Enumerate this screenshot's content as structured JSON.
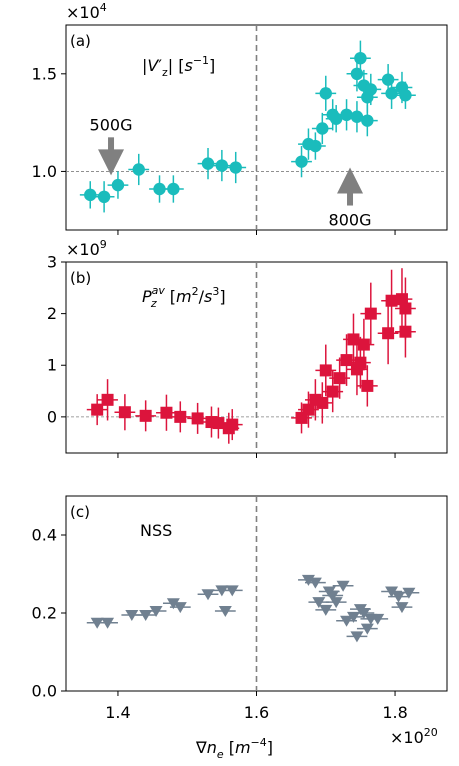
{
  "chart_data": {
    "type": "scatter",
    "xlabel": "∇n_e [m^-4]",
    "x_unit_label": "×10",
    "x_unit_exp": "20",
    "xlim": [
      1.325,
      1.875
    ],
    "xticks": [
      1.4,
      1.6,
      1.8
    ],
    "xtick_labels": [
      "1.4",
      "1.6",
      "1.8"
    ],
    "vline_x": 1.6,
    "panels": [
      {
        "label": "(a)",
        "title": "|V'_z| [s^-1]",
        "title_parts": [
          "|",
          "V",
          "′",
          "z",
          "| [",
          "s",
          "−1",
          "]"
        ],
        "multiplier": "×10",
        "multiplier_exp": "4",
        "ylim": [
          0.7,
          1.75
        ],
        "yticks": [
          1.0,
          1.5
        ],
        "ytick_labels": [
          "1.0",
          "1.5"
        ],
        "hline_y": 1.0,
        "marker": "circle",
        "color": "#1abcbc",
        "annotations": [
          {
            "text": "500G",
            "x": 1.39,
            "y": 0.98,
            "direction": "down"
          },
          {
            "text": "800G",
            "x": 1.735,
            "y": 1.02,
            "direction": "up"
          }
        ],
        "points": [
          [
            1.36,
            0.88,
            0.015,
            0.07
          ],
          [
            1.38,
            0.87,
            0.015,
            0.08
          ],
          [
            1.4,
            0.93,
            0.015,
            0.07
          ],
          [
            1.43,
            1.01,
            0.015,
            0.08
          ],
          [
            1.46,
            0.91,
            0.015,
            0.07
          ],
          [
            1.48,
            0.91,
            0.015,
            0.07
          ],
          [
            1.53,
            1.04,
            0.015,
            0.08
          ],
          [
            1.55,
            1.03,
            0.015,
            0.08
          ],
          [
            1.57,
            1.02,
            0.015,
            0.08
          ],
          [
            1.665,
            1.05,
            0.015,
            0.08
          ],
          [
            1.675,
            1.14,
            0.015,
            0.08
          ],
          [
            1.685,
            1.13,
            0.015,
            0.07
          ],
          [
            1.695,
            1.22,
            0.015,
            0.08
          ],
          [
            1.7,
            1.4,
            0.015,
            0.09
          ],
          [
            1.71,
            1.29,
            0.015,
            0.08
          ],
          [
            1.715,
            1.27,
            0.015,
            0.07
          ],
          [
            1.73,
            1.29,
            0.015,
            0.08
          ],
          [
            1.745,
            1.5,
            0.015,
            0.09
          ],
          [
            1.745,
            1.28,
            0.015,
            0.08
          ],
          [
            1.75,
            1.58,
            0.015,
            0.09
          ],
          [
            1.755,
            1.44,
            0.015,
            0.08
          ],
          [
            1.76,
            1.26,
            0.015,
            0.08
          ],
          [
            1.76,
            1.38,
            0.015,
            0.08
          ],
          [
            1.765,
            1.42,
            0.015,
            0.08
          ],
          [
            1.79,
            1.47,
            0.015,
            0.08
          ],
          [
            1.795,
            1.4,
            0.015,
            0.08
          ],
          [
            1.81,
            1.43,
            0.015,
            0.08
          ],
          [
            1.815,
            1.39,
            0.015,
            0.07
          ]
        ]
      },
      {
        "label": "(b)",
        "title": "P_z^av [m^2/s^3]",
        "title_parts": [
          "P",
          "av",
          "z",
          " [",
          "m",
          "2",
          "/",
          "s",
          "3",
          "]"
        ],
        "multiplier": "×10",
        "multiplier_exp": "9",
        "ylim": [
          -0.7,
          3.0
        ],
        "yticks": [
          0,
          1,
          2,
          3
        ],
        "ytick_labels": [
          "0",
          "1",
          "2",
          "3"
        ],
        "hline_y": 0,
        "marker": "square",
        "color": "#dc143c",
        "points": [
          [
            1.37,
            0.14,
            0.015,
            0.3
          ],
          [
            1.385,
            0.33,
            0.015,
            0.4
          ],
          [
            1.41,
            0.09,
            0.015,
            0.35
          ],
          [
            1.44,
            0.02,
            0.015,
            0.3
          ],
          [
            1.47,
            0.08,
            0.015,
            0.35
          ],
          [
            1.49,
            0.0,
            0.015,
            0.3
          ],
          [
            1.515,
            -0.03,
            0.015,
            0.3
          ],
          [
            1.535,
            -0.1,
            0.015,
            0.3
          ],
          [
            1.545,
            -0.12,
            0.015,
            0.3
          ],
          [
            1.56,
            -0.22,
            0.015,
            0.3
          ],
          [
            1.565,
            -0.15,
            0.015,
            0.3
          ],
          [
            1.665,
            -0.02,
            0.015,
            0.3
          ],
          [
            1.675,
            0.14,
            0.015,
            0.35
          ],
          [
            1.685,
            0.33,
            0.015,
            0.4
          ],
          [
            1.695,
            0.27,
            0.015,
            0.4
          ],
          [
            1.7,
            0.9,
            0.015,
            0.5
          ],
          [
            1.71,
            0.49,
            0.015,
            0.4
          ],
          [
            1.72,
            0.75,
            0.015,
            0.4
          ],
          [
            1.73,
            1.1,
            0.015,
            0.5
          ],
          [
            1.74,
            1.5,
            0.015,
            0.5
          ],
          [
            1.745,
            0.92,
            0.015,
            0.5
          ],
          [
            1.75,
            1.05,
            0.015,
            0.5
          ],
          [
            1.755,
            1.4,
            0.015,
            0.5
          ],
          [
            1.76,
            0.6,
            0.015,
            0.4
          ],
          [
            1.765,
            2.0,
            0.015,
            0.6
          ],
          [
            1.79,
            1.62,
            0.015,
            0.6
          ],
          [
            1.795,
            2.25,
            0.015,
            0.6
          ],
          [
            1.81,
            2.28,
            0.015,
            0.6
          ],
          [
            1.815,
            1.65,
            0.015,
            0.5
          ],
          [
            1.815,
            2.1,
            0.015,
            0.6
          ]
        ]
      },
      {
        "label": "(c)",
        "title": "NSS",
        "title_parts": [
          "NSS"
        ],
        "multiplier": "",
        "multiplier_exp": "",
        "ylim": [
          0.0,
          0.5
        ],
        "yticks": [
          0.0,
          0.2,
          0.4
        ],
        "ytick_labels": [
          "0.0",
          "0.2",
          "0.4"
        ],
        "hline_y": null,
        "marker": "triangle-down",
        "color": "#708090",
        "points": [
          [
            1.37,
            0.175,
            0.015,
            0
          ],
          [
            1.385,
            0.175,
            0.015,
            0
          ],
          [
            1.42,
            0.195,
            0.015,
            0
          ],
          [
            1.44,
            0.195,
            0.015,
            0
          ],
          [
            1.455,
            0.205,
            0.015,
            0
          ],
          [
            1.48,
            0.225,
            0.015,
            0
          ],
          [
            1.49,
            0.215,
            0.015,
            0
          ],
          [
            1.53,
            0.248,
            0.015,
            0
          ],
          [
            1.55,
            0.258,
            0.015,
            0
          ],
          [
            1.565,
            0.258,
            0.015,
            0
          ],
          [
            1.555,
            0.205,
            0.015,
            0
          ],
          [
            1.675,
            0.285,
            0.015,
            0
          ],
          [
            1.685,
            0.278,
            0.015,
            0
          ],
          [
            1.69,
            0.228,
            0.015,
            0
          ],
          [
            1.7,
            0.208,
            0.015,
            0
          ],
          [
            1.705,
            0.255,
            0.015,
            0
          ],
          [
            1.71,
            0.245,
            0.015,
            0
          ],
          [
            1.715,
            0.228,
            0.015,
            0
          ],
          [
            1.725,
            0.27,
            0.015,
            0
          ],
          [
            1.73,
            0.18,
            0.015,
            0
          ],
          [
            1.74,
            0.19,
            0.015,
            0
          ],
          [
            1.745,
            0.14,
            0.015,
            0
          ],
          [
            1.75,
            0.21,
            0.015,
            0
          ],
          [
            1.755,
            0.2,
            0.015,
            0
          ],
          [
            1.76,
            0.16,
            0.015,
            0
          ],
          [
            1.765,
            0.185,
            0.015,
            0
          ],
          [
            1.775,
            0.185,
            0.015,
            0
          ],
          [
            1.795,
            0.255,
            0.015,
            0
          ],
          [
            1.805,
            0.242,
            0.015,
            0
          ],
          [
            1.81,
            0.215,
            0.015,
            0
          ],
          [
            1.82,
            0.252,
            0.015,
            0
          ]
        ]
      }
    ]
  }
}
